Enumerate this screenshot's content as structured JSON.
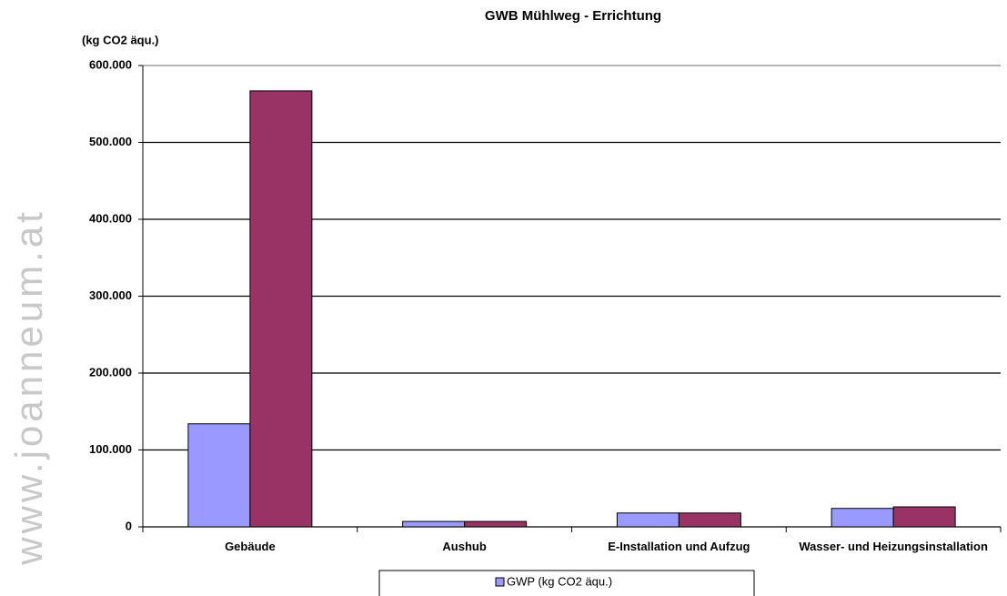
{
  "watermark": "www.joanneum.at",
  "chart_data": {
    "type": "bar",
    "title": "GWB Mühlweg - Errichtung",
    "y_label": "(kg CO2 äqu.)",
    "categories": [
      "Gebäude",
      "Aushub",
      "E-Installation und Aufzug",
      "Wasser- und Heizungsinstallation"
    ],
    "series": [
      {
        "name": "GWP (kg CO2 äqu.)",
        "color": "#9999ff",
        "values": [
          134000,
          7000,
          18000,
          24000
        ]
      },
      {
        "color": "#993366",
        "values": [
          567000,
          7000,
          18000,
          26000
        ]
      }
    ],
    "ylim": [
      0,
      600000
    ],
    "yticks": [
      0,
      {
        "value": 100000,
        "label": "100.000"
      },
      {
        "value": 200000,
        "label": "200.000"
      },
      {
        "value": 300000,
        "label": "300.000"
      },
      {
        "value": 400000,
        "label": "400.000"
      },
      {
        "value": 500000,
        "label": "500.000"
      },
      {
        "value": 600000,
        "label": "600.000"
      }
    ],
    "grid": true
  }
}
